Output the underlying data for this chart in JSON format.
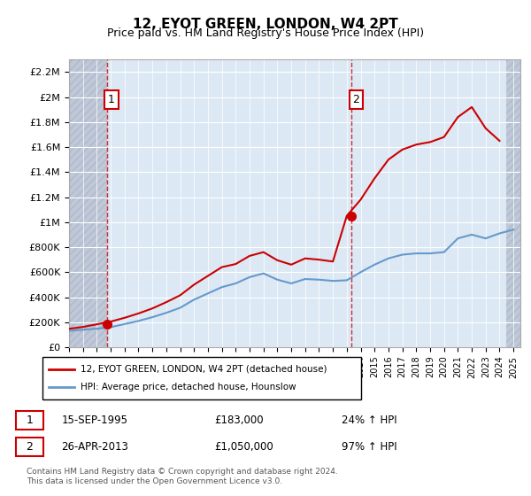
{
  "title": "12, EYOT GREEN, LONDON, W4 2PT",
  "subtitle": "Price paid vs. HM Land Registry's House Price Index (HPI)",
  "legend_line1": "12, EYOT GREEN, LONDON, W4 2PT (detached house)",
  "legend_line2": "HPI: Average price, detached house, Hounslow",
  "transaction1": {
    "label": "1",
    "date": "15-SEP-1995",
    "price": 183000,
    "hpi_pct": "24% ↑ HPI",
    "year": 1995.71
  },
  "transaction2": {
    "label": "2",
    "date": "26-APR-2013",
    "price": 1050000,
    "hpi_pct": "97% ↑ HPI",
    "year": 2013.32
  },
  "ylim": [
    0,
    2300000
  ],
  "xlim": [
    1993,
    2025.5
  ],
  "yticks": [
    0,
    200000,
    400000,
    600000,
    800000,
    1000000,
    1200000,
    1400000,
    1600000,
    1800000,
    2000000,
    2200000
  ],
  "ytick_labels": [
    "£0",
    "£200K",
    "£400K",
    "£600K",
    "£800K",
    "£1M",
    "£1.2M",
    "£1.4M",
    "£1.6M",
    "£1.8M",
    "£2M",
    "£2.2M"
  ],
  "hpi_color": "#6699cc",
  "price_color": "#cc0000",
  "dashed_color": "#cc0000",
  "background_color": "#dce9f5",
  "hatch_color": "#c0c8d8",
  "grid_color": "#ffffff",
  "footnote": "Contains HM Land Registry data © Crown copyright and database right 2024.\nThis data is licensed under the Open Government Licence v3.0.",
  "hpi_data_years": [
    1993,
    1994,
    1995,
    1996,
    1997,
    1998,
    1999,
    2000,
    2001,
    2002,
    2003,
    2004,
    2005,
    2006,
    2007,
    2008,
    2009,
    2010,
    2011,
    2012,
    2013,
    2014,
    2015,
    2016,
    2017,
    2018,
    2019,
    2020,
    2021,
    2022,
    2023,
    2024,
    2025
  ],
  "hpi_data_values": [
    130000,
    140000,
    148000,
    160000,
    185000,
    210000,
    240000,
    275000,
    315000,
    380000,
    430000,
    480000,
    510000,
    560000,
    590000,
    540000,
    510000,
    545000,
    540000,
    530000,
    535000,
    600000,
    660000,
    710000,
    740000,
    750000,
    750000,
    760000,
    870000,
    900000,
    870000,
    910000,
    940000
  ],
  "price_data_years": [
    1993,
    1994,
    1995,
    1996,
    1997,
    1998,
    1999,
    2000,
    2001,
    2002,
    2003,
    2004,
    2005,
    2006,
    2007,
    2008,
    2009,
    2010,
    2011,
    2012,
    2013,
    2014,
    2015,
    2016,
    2017,
    2018,
    2019,
    2020,
    2021,
    2022,
    2023,
    2024
  ],
  "price_data_values": [
    147000,
    162000,
    183000,
    205000,
    235000,
    270000,
    310000,
    360000,
    415000,
    500000,
    570000,
    640000,
    665000,
    730000,
    760000,
    695000,
    660000,
    710000,
    700000,
    685000,
    1050000,
    1180000,
    1350000,
    1500000,
    1580000,
    1620000,
    1640000,
    1680000,
    1840000,
    1920000,
    1750000,
    1650000
  ]
}
